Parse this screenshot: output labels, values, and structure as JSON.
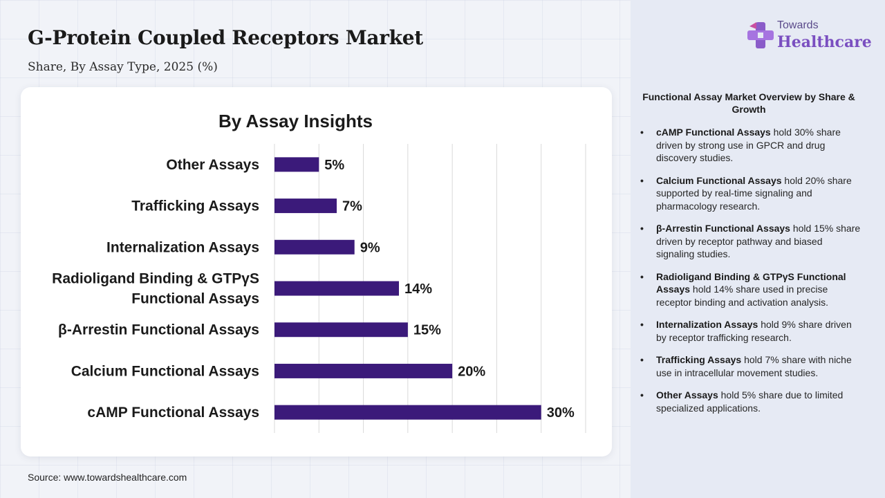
{
  "header": {
    "title": "G-Protein Coupled Receptors Market",
    "subtitle": "Share, By Assay Type, 2025 (%)"
  },
  "logo": {
    "line1": "Towards",
    "line2": "Healthcare",
    "icon": "medical-cross-icon"
  },
  "chart_data": {
    "type": "bar",
    "orientation": "horizontal",
    "title": "By Assay Insights",
    "xlabel": "",
    "ylabel": "",
    "xlim": [
      0,
      35
    ],
    "grid": true,
    "categories": [
      "Other Assays",
      "Trafficking Assays",
      "Internalization Assays",
      "Radioligand Binding & GTPγS Functional Assays",
      "β-Arrestin Functional Assays",
      "Calcium Functional Assays",
      "cAMP Functional Assays"
    ],
    "category_lines": [
      [
        "Other Assays"
      ],
      [
        "Trafficking Assays"
      ],
      [
        "Internalization Assays"
      ],
      [
        "Radioligand Binding & GTPγS",
        "Functional Assays"
      ],
      [
        "β-Arrestin Functional Assays"
      ],
      [
        "Calcium Functional Assays"
      ],
      [
        "cAMP Functional Assays"
      ]
    ],
    "values": [
      5,
      7,
      9,
      14,
      15,
      20,
      30
    ],
    "data_labels": [
      "5%",
      "7%",
      "9%",
      "14%",
      "15%",
      "20%",
      "30%"
    ],
    "bar_color": "#3b1a7a"
  },
  "overview": {
    "title": "Functional Assay Market Overview by Share & Growth",
    "items": [
      {
        "bold": "cAMP Functional Assays",
        "text": " hold 30% share driven by strong use in GPCR and drug discovery studies."
      },
      {
        "bold": "Calcium Functional Assays",
        "text": " hold 20% share supported by real-time signaling and pharmacology research."
      },
      {
        "bold": "β-Arrestin Functional Assays",
        "text": " hold 15% share driven by receptor pathway and biased signaling studies."
      },
      {
        "bold": "Radioligand Binding & GTPγS Functional Assays",
        "text": " hold 14% share used in precise receptor binding and activation analysis."
      },
      {
        "bold": "Internalization Assays",
        "text": " hold 9% share driven by receptor trafficking research."
      },
      {
        "bold": "Trafficking Assays",
        "text": " hold 7% share with niche use in intracellular movement studies."
      },
      {
        "bold": "Other Assays",
        "text": " hold 5% share due to limited specialized applications."
      }
    ]
  },
  "footer": {
    "source": "Source: www.towardshealthcare.com"
  }
}
